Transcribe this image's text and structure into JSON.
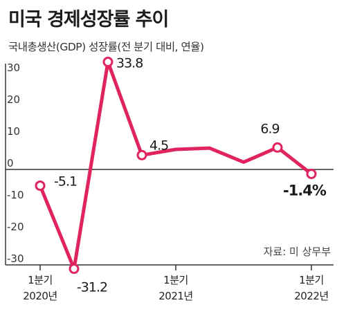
{
  "header": {
    "title": "미국 경제성장률 추이",
    "subtitle": "국내총생산(GDP) 성장률(전 분기 대비, 연율)"
  },
  "source_note": "자료: 미 상무부",
  "colors": {
    "line": "#e0245e",
    "point_fill": "#ffffff",
    "axis": "#333333"
  },
  "chart_data": {
    "type": "line",
    "title": "미국 경제성장률 추이",
    "subtitle": "국내총생산(GDP) 성장률(전 분기 대비, 연율)",
    "xlabel": "",
    "ylabel": "",
    "ylim": [
      -30,
      30
    ],
    "y_ticks": [
      30,
      20,
      10,
      0,
      -10,
      -20,
      -30
    ],
    "grid": false,
    "x": [
      "2020 Q1",
      "2020 Q2",
      "2020 Q3",
      "2020 Q4",
      "2021 Q1",
      "2021 Q2",
      "2021 Q3",
      "2021 Q4",
      "2022 Q1"
    ],
    "x_tick_labels": [
      {
        "index": 0,
        "lines": [
          "1분기",
          "2020년"
        ]
      },
      {
        "index": 4,
        "lines": [
          "1분기",
          "2021년"
        ]
      },
      {
        "index": 8,
        "lines": [
          "1분기",
          "2022년"
        ]
      }
    ],
    "series": [
      {
        "values": [
          -5.1,
          -31.2,
          33.8,
          4.5,
          6.3,
          6.7,
          2.3,
          6.9,
          -1.4
        ]
      }
    ],
    "markers": [
      0,
      1,
      2,
      3,
      7,
      8
    ],
    "data_labels": [
      {
        "index": 0,
        "text": "-5.1"
      },
      {
        "index": 1,
        "text": "-31.2"
      },
      {
        "index": 2,
        "text": "33.8"
      },
      {
        "index": 3,
        "text": "4.5"
      },
      {
        "index": 7,
        "text": "6.9"
      },
      {
        "index": 8,
        "text": "-1.4%",
        "bold": true
      }
    ]
  }
}
